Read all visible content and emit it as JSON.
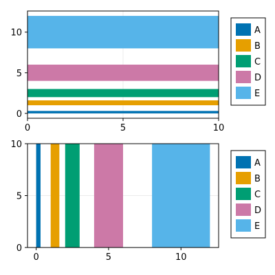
{
  "chart_data": [
    {
      "type": "bar",
      "orientation": "horizontal",
      "title": "",
      "xlabel": "",
      "ylabel": "",
      "grid": true,
      "legend_placement": "right",
      "xlim": [
        0,
        10
      ],
      "ylim": [
        -0.6,
        12.6
      ],
      "xticks": [
        "0",
        "5",
        "10"
      ],
      "yticks": [
        "0",
        "5",
        "10"
      ],
      "series": [
        {
          "name": "A",
          "color": "#0072b2",
          "start": 0,
          "end": 0.3
        },
        {
          "name": "B",
          "color": "#e69f00",
          "start": 1,
          "end": 1.6
        },
        {
          "name": "C",
          "color": "#009e73",
          "start": 2,
          "end": 3
        },
        {
          "name": "D",
          "color": "#cc79a7",
          "start": 4,
          "end": 6
        },
        {
          "name": "E",
          "color": "#56b4e9",
          "start": 8,
          "end": 12
        }
      ]
    },
    {
      "type": "bar",
      "orientation": "vertical",
      "title": "",
      "xlabel": "",
      "ylabel": "",
      "grid": true,
      "legend_placement": "right",
      "xlim": [
        -0.6,
        12.6
      ],
      "ylim": [
        0,
        10
      ],
      "xticks": [
        "0",
        "5",
        "10"
      ],
      "yticks": [
        "0",
        "5",
        "10"
      ],
      "series": [
        {
          "name": "A",
          "color": "#0072b2",
          "start": 0,
          "end": 0.3
        },
        {
          "name": "B",
          "color": "#e69f00",
          "start": 1,
          "end": 1.6
        },
        {
          "name": "C",
          "color": "#009e73",
          "start": 2,
          "end": 3
        },
        {
          "name": "D",
          "color": "#cc79a7",
          "start": 4,
          "end": 6
        },
        {
          "name": "E",
          "color": "#56b4e9",
          "start": 8,
          "end": 12
        }
      ]
    }
  ]
}
